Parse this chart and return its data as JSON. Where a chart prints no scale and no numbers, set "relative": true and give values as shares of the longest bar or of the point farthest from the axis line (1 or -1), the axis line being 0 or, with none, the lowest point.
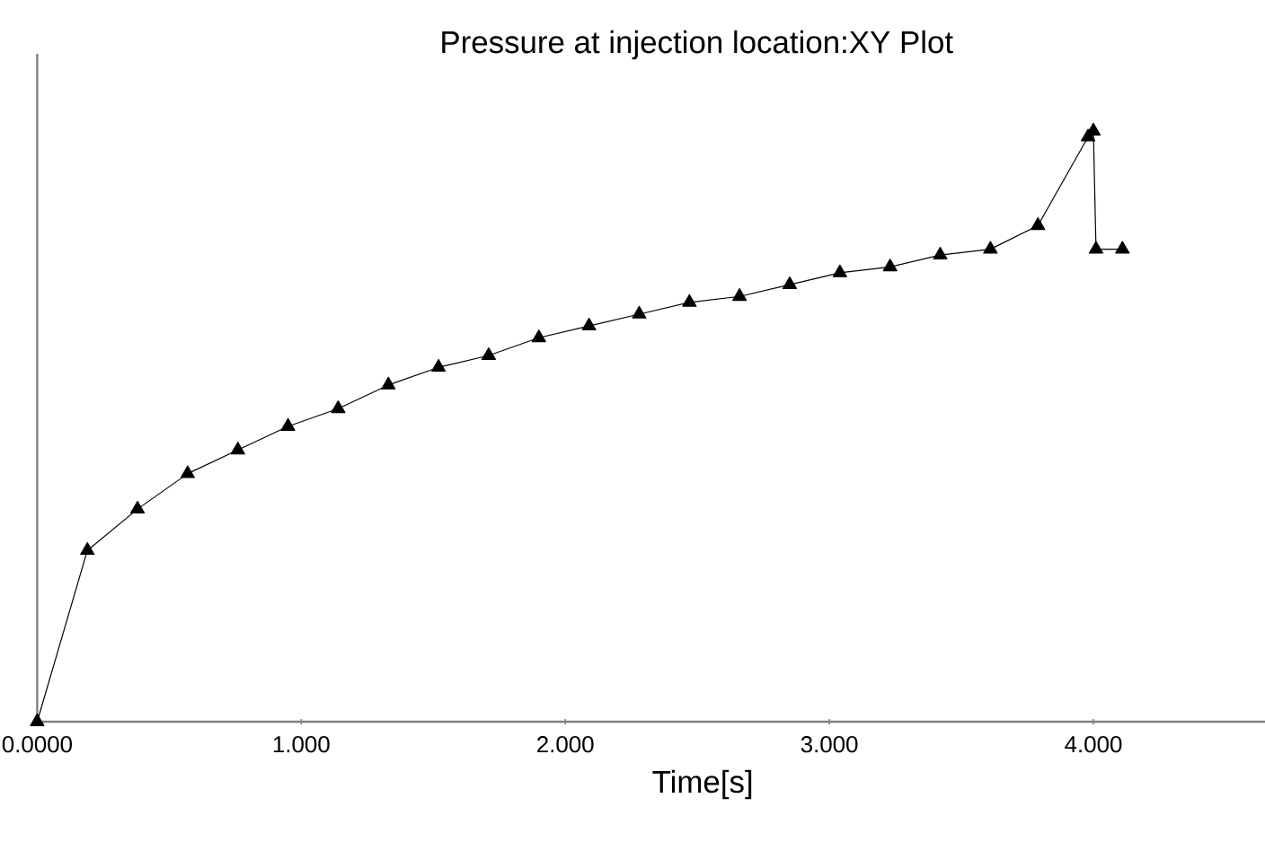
{
  "chart_data": {
    "type": "line",
    "title": "Pressure at injection location:XY Plot",
    "xlabel": "Time[s]",
    "relative": true,
    "x": [
      0,
      0.19,
      0.38,
      0.57,
      0.76,
      0.95,
      1.14,
      1.33,
      1.52,
      1.71,
      1.9,
      2.09,
      2.28,
      2.47,
      2.66,
      2.85,
      3.04,
      3.23,
      3.42,
      3.61,
      3.79,
      3.98,
      4.0,
      4.01,
      4.11
    ],
    "series": [
      {
        "color": "#000000",
        "values": [
          0,
          0.29,
          0.36,
          0.42,
          0.46,
          0.5,
          0.53,
          0.57,
          0.6,
          0.62,
          0.65,
          0.67,
          0.69,
          0.71,
          0.72,
          0.74,
          0.76,
          0.77,
          0.79,
          0.8,
          0.84,
          0.99,
          1,
          0.8,
          0.8
        ]
      }
    ],
    "xlim": [
      0,
      4.65
    ],
    "xticks": [
      {
        "value": 0,
        "label": "0.0000"
      },
      {
        "value": 1,
        "label": "1.000"
      },
      {
        "value": 2,
        "label": "2.000"
      },
      {
        "value": 3,
        "label": "3.000"
      },
      {
        "value": 4,
        "label": "4.000"
      }
    ],
    "marker": "triangle",
    "line_style": "solid"
  }
}
